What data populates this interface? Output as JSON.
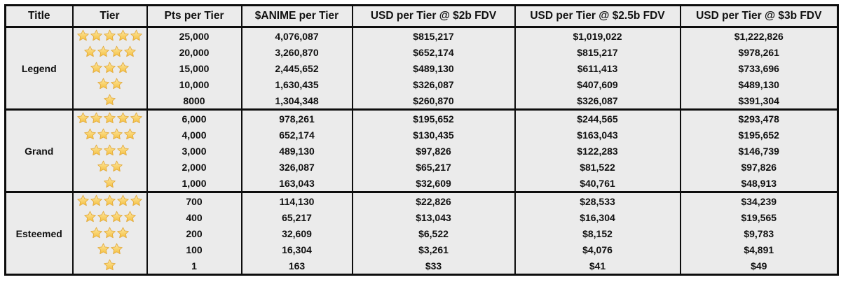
{
  "table": {
    "headers": [
      "Title",
      "Tier",
      "Pts per Tier",
      "$ANIME per Tier",
      "USD per Tier @ $2b FDV",
      "USD per Tier @ $2.5b FDV",
      "USD per Tier @ $3b FDV"
    ],
    "groups": [
      {
        "title": "Legend",
        "rows": [
          {
            "stars": 5,
            "pts": "25,000",
            "anime": "4,076,087",
            "usd_2b": "$815,217",
            "usd_2_5b": "$1,019,022",
            "usd_3b": "$1,222,826",
            "highlight": false
          },
          {
            "stars": 4,
            "pts": "20,000",
            "anime": "3,260,870",
            "usd_2b": "$652,174",
            "usd_2_5b": "$815,217",
            "usd_3b": "$978,261",
            "highlight": false
          },
          {
            "stars": 3,
            "pts": "15,000",
            "anime": "2,445,652",
            "usd_2b": "$489,130",
            "usd_2_5b": "$611,413",
            "usd_3b": "$733,696",
            "highlight": false
          },
          {
            "stars": 2,
            "pts": "10,000",
            "anime": "1,630,435",
            "usd_2b": "$326,087",
            "usd_2_5b": "$407,609",
            "usd_3b": "$489,130",
            "highlight": false
          },
          {
            "stars": 1,
            "pts": "8000",
            "anime": "1,304,348",
            "usd_2b": "$260,870",
            "usd_2_5b": "$326,087",
            "usd_3b": "$391,304",
            "highlight": false
          }
        ]
      },
      {
        "title": "Grand",
        "rows": [
          {
            "stars": 5,
            "pts": "6,000",
            "anime": "978,261",
            "usd_2b": "$195,652",
            "usd_2_5b": "$244,565",
            "usd_3b": "$293,478",
            "highlight": false
          },
          {
            "stars": 4,
            "pts": "4,000",
            "anime": "652,174",
            "usd_2b": "$130,435",
            "usd_2_5b": "$163,043",
            "usd_3b": "$195,652",
            "highlight": false
          },
          {
            "stars": 3,
            "pts": "3,000",
            "anime": "489,130",
            "usd_2b": "$97,826",
            "usd_2_5b": "$122,283",
            "usd_3b": "$146,739",
            "highlight": false
          },
          {
            "stars": 2,
            "pts": "2,000",
            "anime": "326,087",
            "usd_2b": "$65,217",
            "usd_2_5b": "$81,522",
            "usd_3b": "$97,826",
            "highlight": false
          },
          {
            "stars": 1,
            "pts": "1,000",
            "anime": "163,043",
            "usd_2b": "$32,609",
            "usd_2_5b": "$40,761",
            "usd_3b": "$48,913",
            "highlight": true
          }
        ]
      },
      {
        "title": "Esteemed",
        "rows": [
          {
            "stars": 5,
            "pts": "700",
            "anime": "114,130",
            "usd_2b": "$22,826",
            "usd_2_5b": "$28,533",
            "usd_3b": "$34,239",
            "highlight": false
          },
          {
            "stars": 4,
            "pts": "400",
            "anime": "65,217",
            "usd_2b": "$13,043",
            "usd_2_5b": "$16,304",
            "usd_3b": "$19,565",
            "highlight": false
          },
          {
            "stars": 3,
            "pts": "200",
            "anime": "32,609",
            "usd_2b": "$6,522",
            "usd_2_5b": "$8,152",
            "usd_3b": "$9,783",
            "highlight": false
          },
          {
            "stars": 2,
            "pts": "100",
            "anime": "16,304",
            "usd_2b": "$3,261",
            "usd_2_5b": "$4,076",
            "usd_3b": "$4,891",
            "highlight": true
          },
          {
            "stars": 1,
            "pts": "1",
            "anime": "163",
            "usd_2b": "$33",
            "usd_2_5b": "$41",
            "usd_3b": "$49",
            "highlight": false
          }
        ]
      }
    ],
    "colors": {
      "cell_bg": "#ebebeb",
      "highlight_bg": "#f3d5d8",
      "border": "#0d0d0d",
      "star_fill_top": "#fdeaa8",
      "star_fill_bottom": "#f5bf3d",
      "star_edge": "#e2a93b",
      "page_bg": "#ffffff",
      "text": "#111111"
    }
  },
  "chart_data": {
    "type": "table",
    "columns": [
      "Title",
      "Tier (stars)",
      "Pts per Tier",
      "$ANIME per Tier",
      "USD per Tier @ $2b FDV",
      "USD per Tier @ $2.5b FDV",
      "USD per Tier @ $3b FDV"
    ],
    "rows": [
      [
        "Legend",
        5,
        25000,
        4076087,
        815217,
        1019022,
        1222826
      ],
      [
        "Legend",
        4,
        20000,
        3260870,
        652174,
        815217,
        978261
      ],
      [
        "Legend",
        3,
        15000,
        2445652,
        489130,
        611413,
        733696
      ],
      [
        "Legend",
        2,
        10000,
        1630435,
        326087,
        407609,
        489130
      ],
      [
        "Legend",
        1,
        8000,
        1304348,
        260870,
        326087,
        391304
      ],
      [
        "Grand",
        5,
        6000,
        978261,
        195652,
        244565,
        293478
      ],
      [
        "Grand",
        4,
        4000,
        652174,
        130435,
        163043,
        195652
      ],
      [
        "Grand",
        3,
        3000,
        489130,
        97826,
        122283,
        146739
      ],
      [
        "Grand",
        2,
        2000,
        326087,
        65217,
        81522,
        97826
      ],
      [
        "Grand",
        1,
        1000,
        163043,
        32609,
        40761,
        48913
      ],
      [
        "Esteemed",
        5,
        700,
        114130,
        22826,
        28533,
        34239
      ],
      [
        "Esteemed",
        4,
        400,
        65217,
        13043,
        16304,
        19565
      ],
      [
        "Esteemed",
        3,
        200,
        32609,
        6522,
        8152,
        9783
      ],
      [
        "Esteemed",
        2,
        100,
        16304,
        3261,
        4076,
        4891
      ],
      [
        "Esteemed",
        1,
        1,
        163,
        33,
        41,
        49
      ]
    ],
    "highlighted_rows": [
      9,
      13
    ],
    "title": "",
    "legend": "none",
    "grid": "table-borders"
  }
}
